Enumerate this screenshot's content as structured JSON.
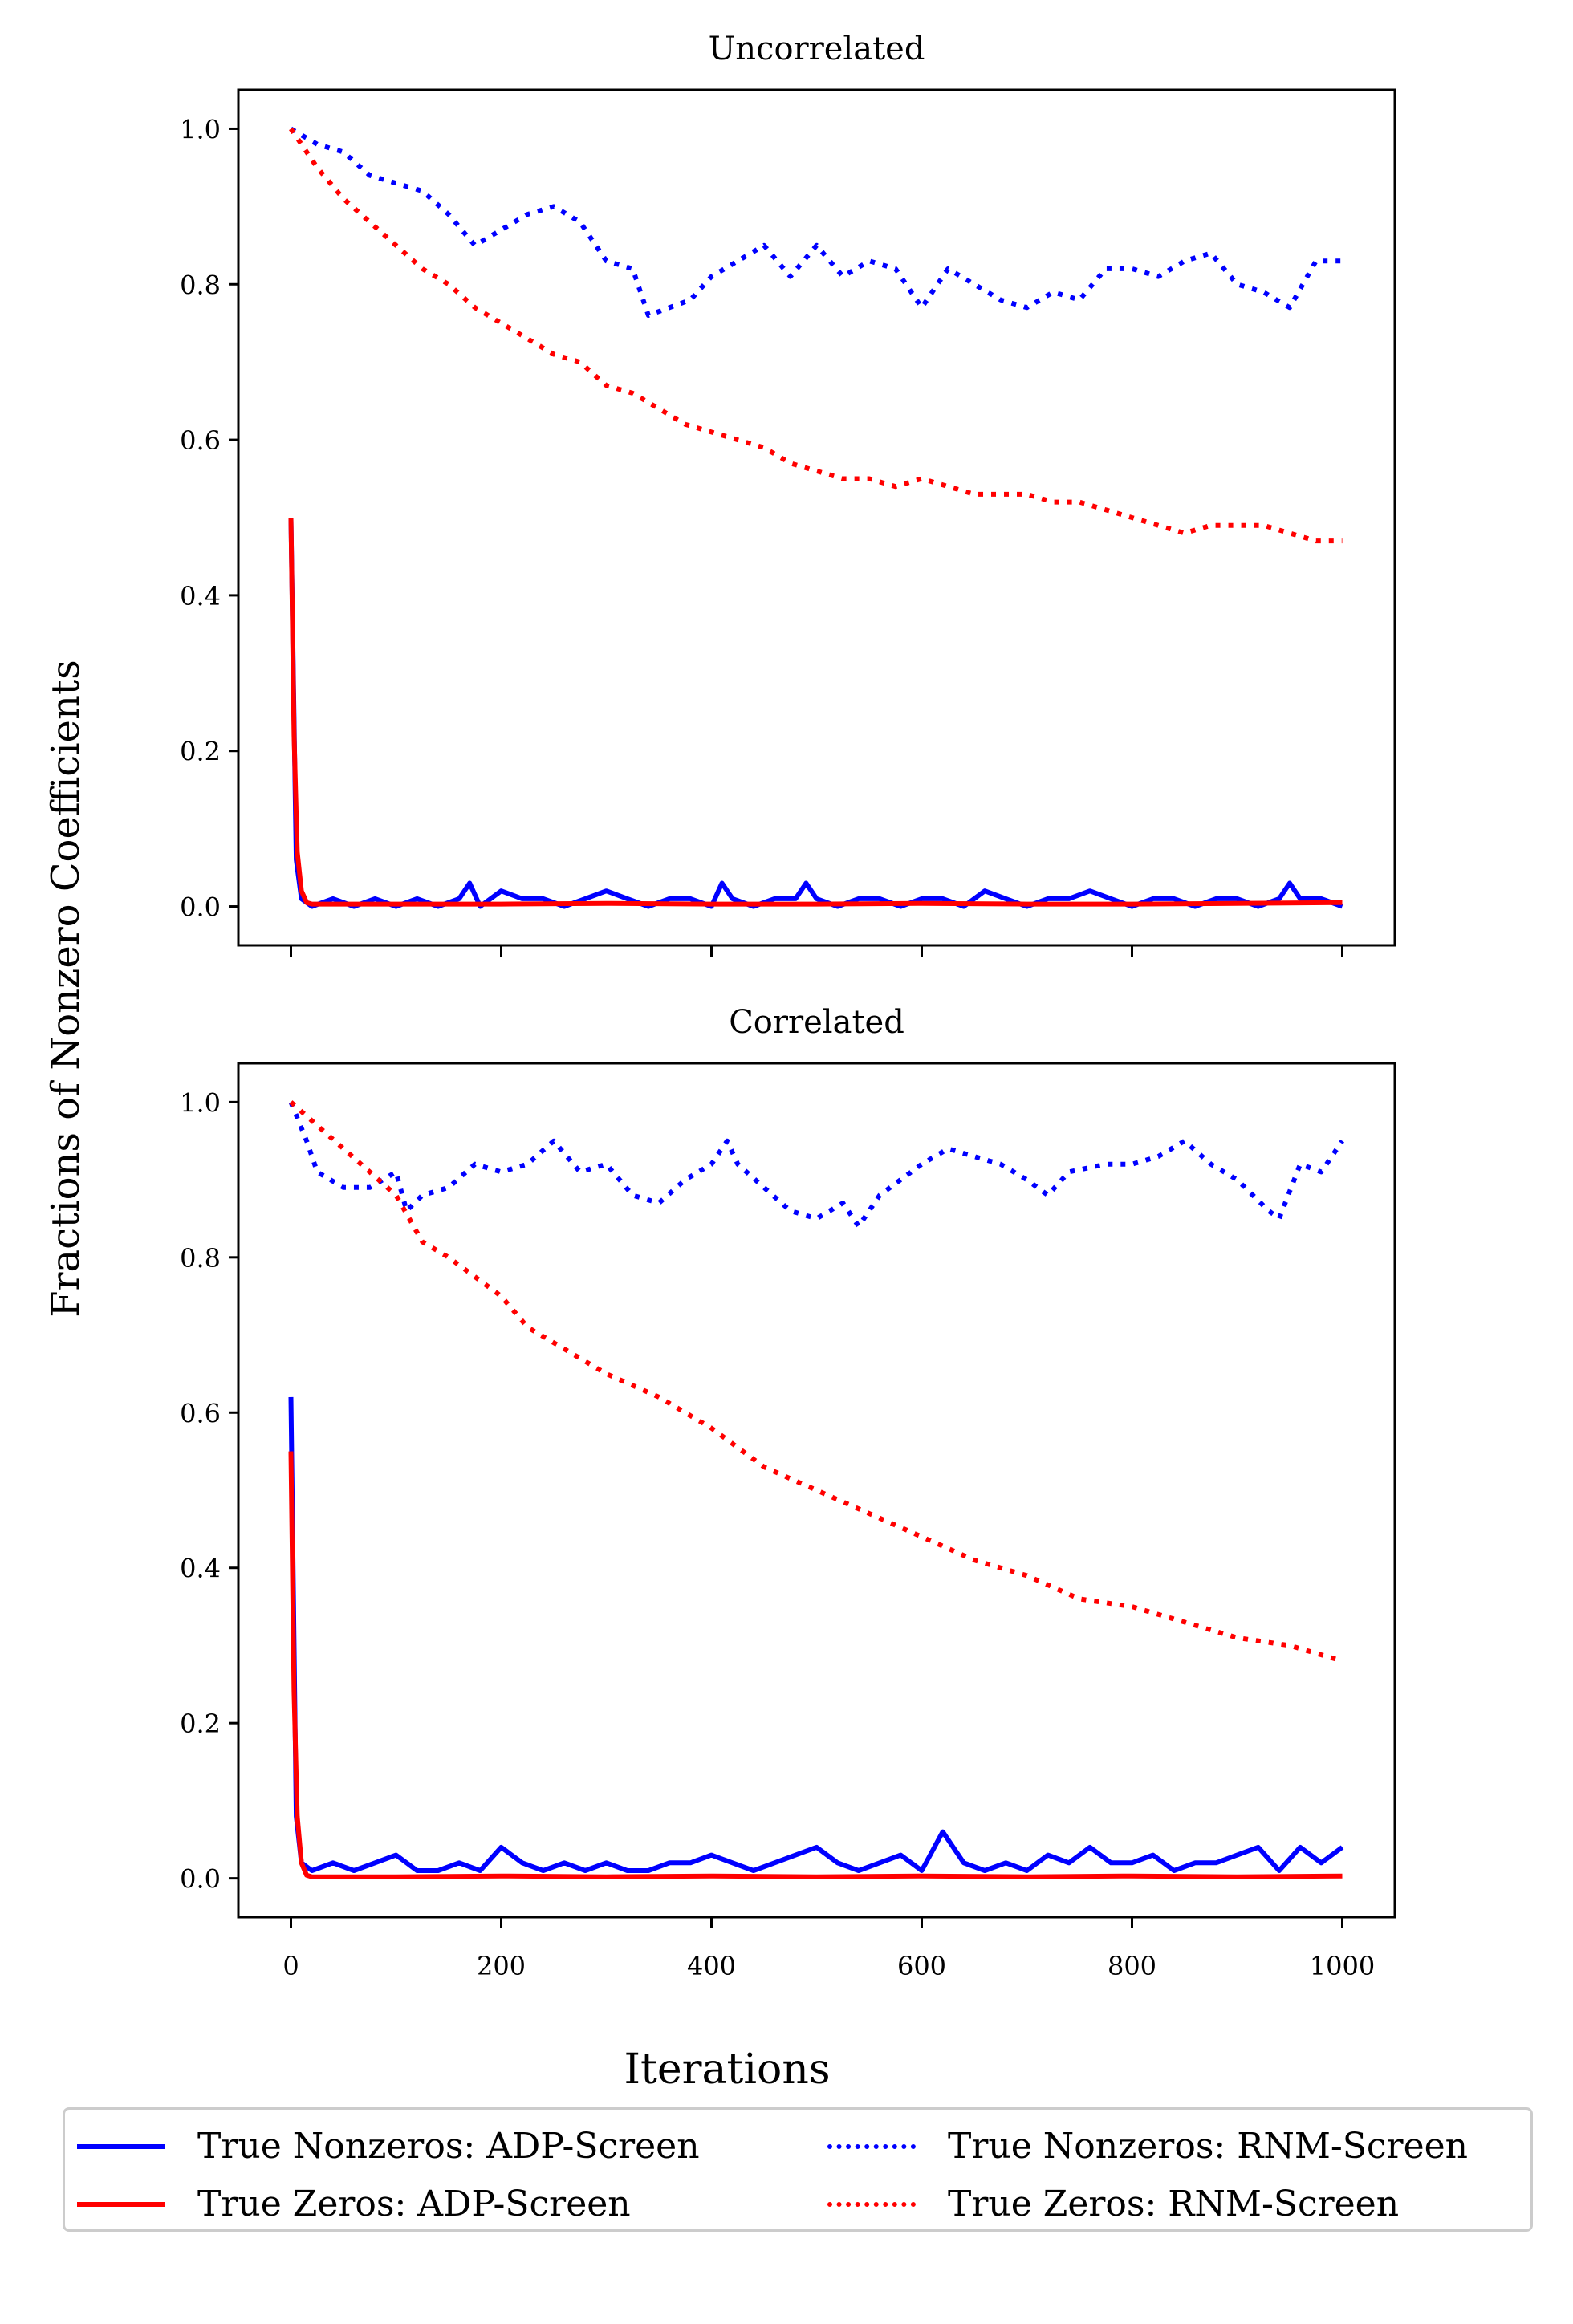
{
  "figure": {
    "ylabel": "Fractions of Nonzero Coefficients",
    "xlabel": "Iterations"
  },
  "colors": {
    "blue": "#0000ff",
    "red": "#ff0000"
  },
  "legend": [
    {
      "label": "True Nonzeros: ADP-Screen",
      "color": "#0000ff",
      "style": "solid"
    },
    {
      "label": "True Zeros: ADP-Screen",
      "color": "#ff0000",
      "style": "solid"
    },
    {
      "label": "True Nonzeros: RNM-Screen",
      "color": "#0000ff",
      "style": "dotted"
    },
    {
      "label": "True Zeros: RNM-Screen",
      "color": "#ff0000",
      "style": "dotted"
    }
  ],
  "chart_data": [
    {
      "type": "line",
      "title": "Uncorrelated",
      "xlim": [
        -50,
        1050
      ],
      "ylim": [
        -0.05,
        1.05
      ],
      "xticks": [
        "0",
        "200",
        "400",
        "600",
        "800",
        "1000"
      ],
      "xtick_values": [
        0,
        200,
        400,
        600,
        800,
        1000
      ],
      "show_xtick_labels": false,
      "yticks": [
        "0.0",
        "0.2",
        "0.4",
        "0.6",
        "0.8",
        "1.0"
      ],
      "ytick_values": [
        0,
        0.2,
        0.4,
        0.6,
        0.8,
        1.0
      ],
      "series": [
        {
          "name": "True Nonzeros: RNM-Screen",
          "color": "#0000ff",
          "style": "dotted",
          "x": [
            0,
            25,
            50,
            75,
            100,
            125,
            150,
            175,
            200,
            225,
            250,
            275,
            300,
            325,
            340,
            360,
            380,
            400,
            425,
            450,
            475,
            500,
            525,
            550,
            575,
            600,
            625,
            650,
            675,
            700,
            725,
            750,
            775,
            800,
            825,
            850,
            875,
            900,
            925,
            950,
            975,
            1000
          ],
          "y": [
            1.0,
            0.98,
            0.97,
            0.94,
            0.93,
            0.92,
            0.89,
            0.85,
            0.87,
            0.89,
            0.9,
            0.88,
            0.83,
            0.82,
            0.76,
            0.77,
            0.78,
            0.81,
            0.83,
            0.85,
            0.81,
            0.85,
            0.81,
            0.83,
            0.82,
            0.77,
            0.82,
            0.8,
            0.78,
            0.77,
            0.79,
            0.78,
            0.82,
            0.82,
            0.81,
            0.83,
            0.84,
            0.8,
            0.79,
            0.77,
            0.83,
            0.83
          ]
        },
        {
          "name": "True Zeros: RNM-Screen",
          "color": "#ff0000",
          "style": "dotted",
          "x": [
            0,
            25,
            50,
            75,
            100,
            125,
            150,
            175,
            200,
            225,
            250,
            275,
            300,
            325,
            350,
            375,
            400,
            425,
            450,
            475,
            500,
            525,
            550,
            575,
            600,
            625,
            650,
            675,
            700,
            725,
            750,
            775,
            800,
            825,
            850,
            875,
            900,
            925,
            950,
            975,
            1000
          ],
          "y": [
            1.0,
            0.95,
            0.91,
            0.88,
            0.85,
            0.82,
            0.8,
            0.77,
            0.75,
            0.73,
            0.71,
            0.7,
            0.67,
            0.66,
            0.64,
            0.62,
            0.61,
            0.6,
            0.59,
            0.57,
            0.56,
            0.55,
            0.55,
            0.54,
            0.55,
            0.54,
            0.53,
            0.53,
            0.53,
            0.52,
            0.52,
            0.51,
            0.5,
            0.49,
            0.48,
            0.49,
            0.49,
            0.49,
            0.48,
            0.47,
            0.47
          ]
        },
        {
          "name": "True Nonzeros: ADP-Screen",
          "color": "#0000ff",
          "style": "solid",
          "x": [
            0,
            5,
            10,
            20,
            40,
            60,
            80,
            100,
            120,
            140,
            160,
            170,
            180,
            200,
            220,
            240,
            260,
            280,
            300,
            320,
            340,
            360,
            380,
            400,
            410,
            420,
            440,
            460,
            480,
            490,
            500,
            520,
            540,
            560,
            580,
            600,
            620,
            640,
            660,
            680,
            700,
            720,
            740,
            760,
            780,
            800,
            820,
            840,
            860,
            880,
            900,
            920,
            940,
            950,
            960,
            980,
            1000
          ],
          "y": [
            0.5,
            0.06,
            0.01,
            0.0,
            0.01,
            0.0,
            0.01,
            0.0,
            0.01,
            0.0,
            0.01,
            0.03,
            0.0,
            0.02,
            0.01,
            0.01,
            0.0,
            0.01,
            0.02,
            0.01,
            0.0,
            0.01,
            0.01,
            0.0,
            0.03,
            0.01,
            0.0,
            0.01,
            0.01,
            0.03,
            0.01,
            0.0,
            0.01,
            0.01,
            0.0,
            0.01,
            0.01,
            0.0,
            0.02,
            0.01,
            0.0,
            0.01,
            0.01,
            0.02,
            0.01,
            0.0,
            0.01,
            0.01,
            0.0,
            0.01,
            0.01,
            0.0,
            0.01,
            0.03,
            0.01,
            0.01,
            0.0
          ]
        },
        {
          "name": "True Zeros: ADP-Screen",
          "color": "#ff0000",
          "style": "solid",
          "x": [
            0,
            3,
            6,
            10,
            15,
            20,
            100,
            200,
            300,
            400,
            500,
            600,
            700,
            800,
            900,
            1000
          ],
          "y": [
            0.5,
            0.22,
            0.07,
            0.02,
            0.005,
            0.003,
            0.003,
            0.003,
            0.004,
            0.003,
            0.003,
            0.004,
            0.003,
            0.003,
            0.004,
            0.005
          ]
        }
      ]
    },
    {
      "type": "line",
      "title": "Correlated",
      "xlim": [
        -50,
        1050
      ],
      "ylim": [
        -0.05,
        1.05
      ],
      "xticks": [
        "0",
        "200",
        "400",
        "600",
        "800",
        "1000"
      ],
      "xtick_values": [
        0,
        200,
        400,
        600,
        800,
        1000
      ],
      "show_xtick_labels": true,
      "yticks": [
        "0.0",
        "0.2",
        "0.4",
        "0.6",
        "0.8",
        "1.0"
      ],
      "ytick_values": [
        0,
        0.2,
        0.4,
        0.6,
        0.8,
        1.0
      ],
      "series": [
        {
          "name": "True Nonzeros: RNM-Screen",
          "color": "#0000ff",
          "style": "dotted",
          "x": [
            0,
            15,
            25,
            50,
            75,
            100,
            110,
            125,
            150,
            175,
            200,
            225,
            250,
            275,
            300,
            325,
            350,
            375,
            400,
            415,
            425,
            450,
            475,
            500,
            525,
            540,
            560,
            600,
            625,
            650,
            675,
            700,
            720,
            740,
            775,
            800,
            825,
            850,
            875,
            900,
            930,
            940,
            960,
            980,
            1000
          ],
          "y": [
            1.0,
            0.95,
            0.91,
            0.89,
            0.89,
            0.91,
            0.86,
            0.88,
            0.89,
            0.92,
            0.91,
            0.92,
            0.95,
            0.91,
            0.92,
            0.88,
            0.87,
            0.9,
            0.92,
            0.95,
            0.92,
            0.89,
            0.86,
            0.85,
            0.87,
            0.84,
            0.88,
            0.92,
            0.94,
            0.93,
            0.92,
            0.9,
            0.88,
            0.91,
            0.92,
            0.92,
            0.93,
            0.95,
            0.92,
            0.9,
            0.86,
            0.85,
            0.92,
            0.91,
            0.95
          ]
        },
        {
          "name": "True Zeros: RNM-Screen",
          "color": "#ff0000",
          "style": "dotted",
          "x": [
            0,
            50,
            100,
            125,
            150,
            200,
            225,
            250,
            300,
            350,
            400,
            450,
            500,
            550,
            600,
            650,
            700,
            750,
            800,
            850,
            900,
            950,
            1000
          ],
          "y": [
            1.0,
            0.94,
            0.88,
            0.82,
            0.8,
            0.75,
            0.71,
            0.69,
            0.65,
            0.62,
            0.58,
            0.53,
            0.5,
            0.47,
            0.44,
            0.41,
            0.39,
            0.36,
            0.35,
            0.33,
            0.31,
            0.3,
            0.28
          ]
        },
        {
          "name": "True Nonzeros: ADP-Screen",
          "color": "#0000ff",
          "style": "solid",
          "x": [
            0,
            5,
            10,
            20,
            40,
            60,
            80,
            100,
            120,
            140,
            160,
            180,
            200,
            220,
            240,
            260,
            280,
            300,
            320,
            340,
            360,
            380,
            400,
            420,
            440,
            460,
            480,
            500,
            520,
            540,
            560,
            580,
            600,
            620,
            640,
            660,
            680,
            700,
            720,
            740,
            760,
            780,
            800,
            820,
            840,
            860,
            880,
            900,
            920,
            940,
            960,
            980,
            1000
          ],
          "y": [
            0.62,
            0.08,
            0.02,
            0.01,
            0.02,
            0.01,
            0.02,
            0.03,
            0.01,
            0.01,
            0.02,
            0.01,
            0.04,
            0.02,
            0.01,
            0.02,
            0.01,
            0.02,
            0.01,
            0.01,
            0.02,
            0.02,
            0.03,
            0.02,
            0.01,
            0.02,
            0.03,
            0.04,
            0.02,
            0.01,
            0.02,
            0.03,
            0.01,
            0.06,
            0.02,
            0.01,
            0.02,
            0.01,
            0.03,
            0.02,
            0.04,
            0.02,
            0.02,
            0.03,
            0.01,
            0.02,
            0.02,
            0.03,
            0.04,
            0.01,
            0.04,
            0.02,
            0.04
          ]
        },
        {
          "name": "True Zeros: ADP-Screen",
          "color": "#ff0000",
          "style": "solid",
          "x": [
            0,
            3,
            6,
            10,
            15,
            20,
            100,
            200,
            300,
            400,
            500,
            600,
            700,
            800,
            900,
            1000
          ],
          "y": [
            0.55,
            0.24,
            0.08,
            0.02,
            0.004,
            0.002,
            0.002,
            0.003,
            0.002,
            0.003,
            0.002,
            0.003,
            0.002,
            0.003,
            0.002,
            0.003
          ]
        }
      ]
    }
  ]
}
